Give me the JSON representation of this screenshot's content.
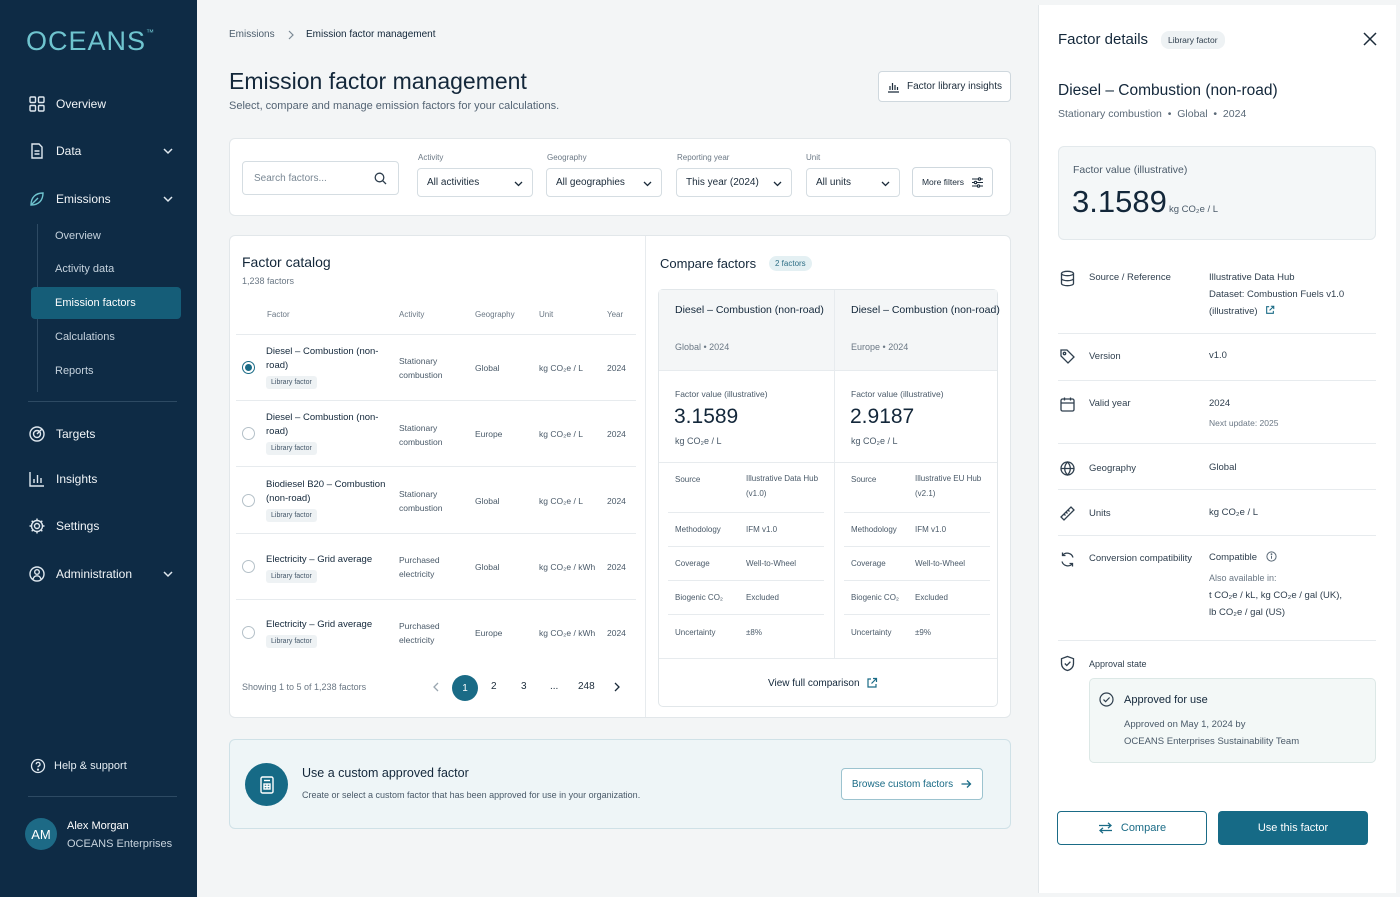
{
  "brand": {
    "logo": "OCEANS",
    "logo_tm": "™",
    "accent": "#166a86",
    "sidebar_bg": "#0e2b45"
  },
  "sidebar": {
    "items": [
      {
        "label": "Overview",
        "icon": "grid-icon"
      },
      {
        "label": "Data",
        "icon": "document-icon"
      },
      {
        "label": "Emissions",
        "icon": "leaf-icon"
      },
      {
        "label": "Targets",
        "icon": "target-icon"
      },
      {
        "label": "Insights",
        "icon": "bar-chart-icon"
      },
      {
        "label": "Settings",
        "icon": "gear-icon"
      },
      {
        "label": "Administration",
        "icon": "admin-icon"
      }
    ],
    "emissions_sub": [
      "Overview",
      "Activity data",
      "Emission factors",
      "Calculations",
      "Reports"
    ],
    "active_sub": "Emission factors",
    "help": "Help & support",
    "user": {
      "initials": "AM",
      "name": "Alex Morgan",
      "org": "OCEANS Enterprises"
    }
  },
  "breadcrumb": {
    "parent": "Emissions",
    "current": "Emission factor management"
  },
  "header": {
    "title": "Emission factor management",
    "subtitle": "Select, compare and manage emission factors for your calculations.",
    "insights_button": "Factor library insights"
  },
  "filters": {
    "search_placeholder": "Search factors...",
    "activity": {
      "label": "Activity",
      "value": "All activities"
    },
    "geography": {
      "label": "Geography",
      "value": "All geographies"
    },
    "year": {
      "label": "Reporting year",
      "value": "This year (2024)"
    },
    "unit": {
      "label": "Unit",
      "value": "All units"
    },
    "more": "More filters"
  },
  "catalog": {
    "title": "Factor catalog",
    "count": "1,238 factors",
    "columns": [
      "Factor",
      "Activity",
      "Geography",
      "Unit",
      "Year"
    ],
    "rows": [
      {
        "name": "Diesel – Combustion (non-road)",
        "tag": "Library factor",
        "activity": "Stationary combustion",
        "geo": "Global",
        "unit": "kg CO₂e / L",
        "year": "2024",
        "selected": true
      },
      {
        "name": "Diesel – Combustion (non-road)",
        "tag": "Library factor",
        "activity": "Stationary combustion",
        "geo": "Europe",
        "unit": "kg CO₂e / L",
        "year": "2024",
        "selected": false
      },
      {
        "name": "Biodiesel B20 – Combustion (non-road)",
        "tag": "Library factor",
        "activity": "Stationary combustion",
        "geo": "Global",
        "unit": "kg CO₂e / L",
        "year": "2024",
        "selected": false
      },
      {
        "name": "Electricity – Grid average",
        "tag": "Library factor",
        "activity": "Purchased electricity",
        "geo": "Global",
        "unit": "kg CO₂e / kWh",
        "year": "2024",
        "selected": false
      },
      {
        "name": "Electricity – Grid average",
        "tag": "Library factor",
        "activity": "Purchased electricity",
        "geo": "Europe",
        "unit": "kg CO₂e / kWh",
        "year": "2024",
        "selected": false
      }
    ],
    "showing": "Showing 1 to 5 of 1,238 factors",
    "pages": [
      "1",
      "2",
      "3",
      "...",
      "248"
    ]
  },
  "compare": {
    "title": "Compare factors",
    "badge": "2 factors",
    "columns": [
      {
        "name": "Diesel – Combustion (non-road)",
        "geo": "Global",
        "year": "2024",
        "fv_label": "Factor value (illustrative)",
        "value": "3.1589",
        "unit": "kg CO₂e / L",
        "source": "Illustrative Data Hub (v1.0)",
        "methodology": "IFM v1.0",
        "coverage": "Well-to-Wheel",
        "biogenic": "Excluded",
        "uncertainty": "±8%"
      },
      {
        "name": "Diesel – Combustion (non-road)",
        "geo": "Europe",
        "year": "2024",
        "fv_label": "Factor value (illustrative)",
        "value": "2.9187",
        "unit": "kg CO₂e / L",
        "source": "Illustrative EU Hub (v2.1)",
        "methodology": "IFM v1.0",
        "coverage": "Well-to-Wheel",
        "biogenic": "Excluded",
        "uncertainty": "±9%"
      }
    ],
    "keys": {
      "source": "Source",
      "methodology": "Methodology",
      "coverage": "Coverage",
      "biogenic": "Biogenic CO₂",
      "uncertainty": "Uncertainty"
    },
    "view_full": "View full comparison"
  },
  "custom": {
    "title": "Use a custom approved factor",
    "desc": "Create or select a custom factor that has been approved for use in your organization.",
    "button": "Browse custom factors"
  },
  "details": {
    "title": "Factor details",
    "badge": "Library factor",
    "factor_name": "Diesel – Combustion (non-road)",
    "meta": "Stationary combustion  •  Global  •  2024",
    "value_label": "Factor value (illustrative)",
    "value": "3.1589",
    "unit": "kg CO₂e / L",
    "source_key": "Source / Reference",
    "source_val_1": "Illustrative Data Hub",
    "source_val_2": "Dataset: Combustion Fuels v1.0",
    "source_val_3": "(illustrative)",
    "version_key": "Version",
    "version_val": "v1.0",
    "valid_key": "Valid year",
    "valid_val": "2024",
    "valid_next": "Next update: 2025",
    "geo_key": "Geography",
    "geo_val": "Global",
    "units_key": "Units",
    "units_val": "kg CO₂e / L",
    "conv_key": "Conversion compatibility",
    "conv_val": "Compatible",
    "conv_also": "Also available in:",
    "conv_units_1": "t CO₂e / kL, kg CO₂e / gal (UK),",
    "conv_units_2": "lb CO₂e / gal (US)",
    "approval_key": "Approval state",
    "approval_title": "Approved for use",
    "approval_text_1": "Approved on May 1, 2024 by",
    "approval_text_2": "OCEANS Enterprises Sustainability Team",
    "compare_button": "Compare",
    "use_button": "Use this factor"
  }
}
